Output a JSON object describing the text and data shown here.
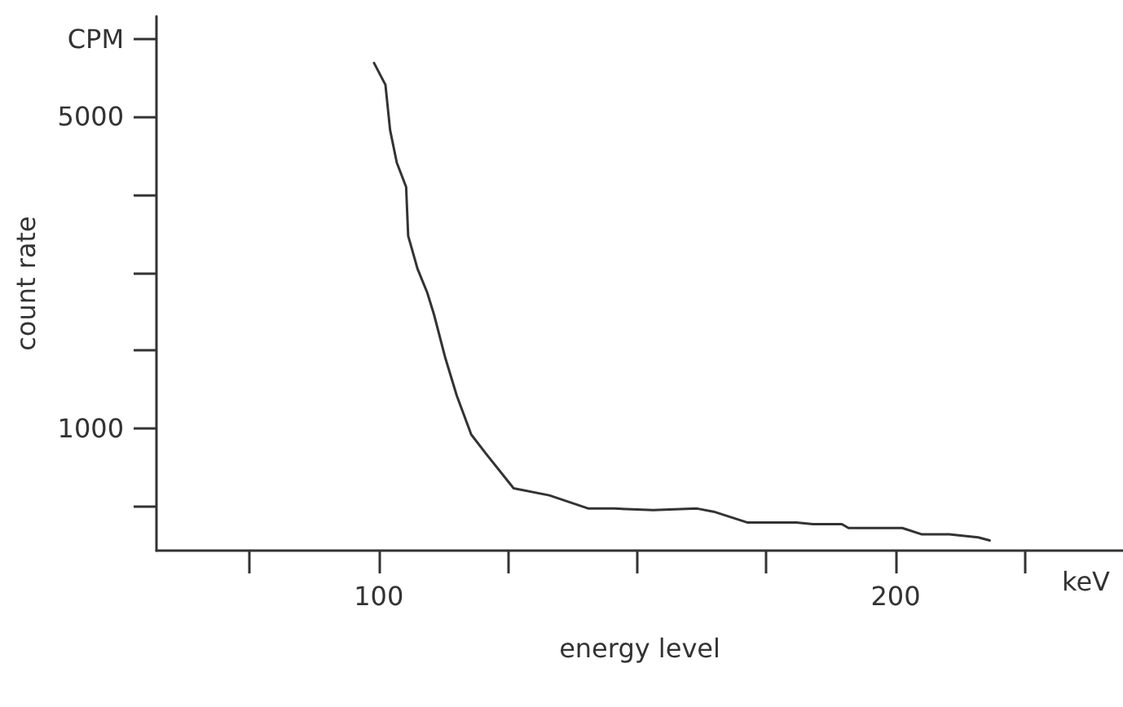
{
  "chart_data": {
    "type": "line",
    "xlabel": "energy level",
    "ylabel": "count rate",
    "annotations": [
      "keV"
    ],
    "x": [
      99.1,
      101.3,
      102.2,
      103.5,
      105.3,
      105.7,
      107.5,
      109.4,
      110.7,
      112.9,
      115.1,
      117.9,
      120.8,
      126.1,
      133,
      140.6,
      145.6,
      153.1,
      161.6,
      164.8,
      171.4,
      180.8,
      184,
      189.6,
      190.9,
      201.3,
      205,
      210.4,
      216,
      218.2
    ],
    "series": [
      {
        "color": "#333333",
        "values": [
          5690,
          5410,
          4830,
          4410,
          4100,
          3470,
          3050,
          2740,
          2460,
          1900,
          1420,
          920,
          670,
          230,
          140,
          -30,
          -30,
          -50,
          -30,
          -70,
          -210,
          -210,
          -230,
          -230,
          -280,
          -280,
          -360,
          -360,
          -400,
          -440
        ]
      }
    ],
    "xlim": [
      57,
      244
    ],
    "ylim": [
      -570,
      6290
    ],
    "xticks": [
      {
        "value": 75,
        "label": null
      },
      100,
      {
        "value": 125,
        "label": null
      },
      {
        "value": 150,
        "label": null
      },
      {
        "value": 175,
        "label": null
      },
      200,
      {
        "value": 225,
        "label": null
      }
    ],
    "yticks": [
      {
        "value": 0,
        "label": null
      },
      1000,
      {
        "value": 2000,
        "label": null
      },
      {
        "value": 3000,
        "label": null
      },
      {
        "value": 4000,
        "label": null
      },
      5000,
      {
        "value": 6000,
        "label": "CPM"
      }
    ],
    "grid": false,
    "marker": "none",
    "line_style": "solid"
  }
}
